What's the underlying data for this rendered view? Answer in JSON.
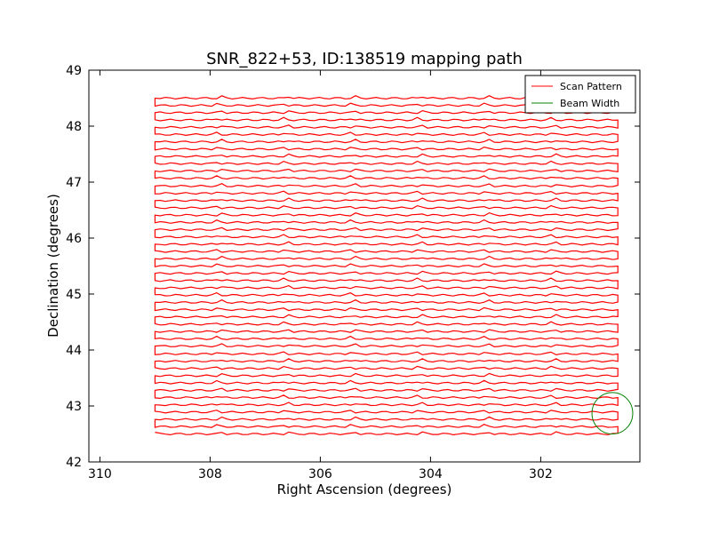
{
  "chart_data": {
    "type": "line",
    "title": "SNR_822+53, ID:138519 mapping path",
    "xlabel": "Right Ascension (degrees)",
    "ylabel": "Declination (degrees)",
    "xlim": [
      310.2,
      300.2
    ],
    "ylim": [
      42,
      49
    ],
    "x_inverted": true,
    "xticks": [
      310,
      308,
      306,
      304,
      302
    ],
    "yticks": [
      42,
      43,
      44,
      45,
      46,
      47,
      48,
      49
    ],
    "grid": false,
    "legend": {
      "placement": "upper right",
      "entries": [
        "Scan Pattern",
        "Beam Width"
      ]
    },
    "series": [
      {
        "name": "Scan Pattern",
        "color": "#ff0000",
        "kind": "boustrophedon raster",
        "ra_range": [
          309.0,
          300.6
        ],
        "dec_range": [
          42.5,
          48.5
        ],
        "n_scan_rows": 47,
        "x": [
          309.0,
          300.6,
          300.6,
          309.0,
          309.0,
          300.6,
          300.6,
          309.0,
          309.0,
          300.6,
          300.6,
          309.0,
          309.0,
          300.6,
          300.6,
          309.0,
          309.0,
          300.6,
          300.6,
          309.0,
          309.0,
          300.6,
          300.6,
          309.0,
          309.0,
          300.6,
          300.6,
          309.0,
          309.0,
          300.6,
          300.6,
          309.0,
          309.0,
          300.6,
          300.6,
          309.0,
          309.0,
          300.6,
          300.6,
          309.0,
          309.0,
          300.6,
          300.6,
          309.0,
          309.0,
          300.6,
          300.6,
          309.0,
          309.0,
          300.6,
          300.6,
          309.0,
          309.0,
          300.6,
          300.6,
          309.0,
          309.0,
          300.6,
          300.6,
          309.0,
          309.0,
          300.6,
          300.6,
          309.0,
          309.0,
          300.6,
          300.6,
          309.0,
          309.0,
          300.6,
          300.6,
          309.0,
          309.0,
          300.6,
          300.6,
          309.0,
          309.0,
          300.6,
          300.6,
          309.0,
          309.0,
          300.6,
          300.6,
          309.0,
          309.0,
          300.6,
          300.6,
          309.0,
          309.0,
          300.6,
          300.6,
          309.0,
          309.0,
          300.6
        ],
        "y": [
          42.5,
          42.5,
          42.63,
          42.63,
          42.76,
          42.76,
          42.89,
          42.89,
          43.02,
          43.02,
          43.15,
          43.15,
          43.28,
          43.28,
          43.41,
          43.41,
          43.54,
          43.54,
          43.67,
          43.67,
          43.8,
          43.8,
          43.93,
          43.93,
          44.07,
          44.07,
          44.2,
          44.2,
          44.33,
          44.33,
          44.46,
          44.46,
          44.59,
          44.59,
          44.72,
          44.72,
          44.85,
          44.85,
          44.98,
          44.98,
          45.11,
          45.11,
          45.24,
          45.24,
          45.37,
          45.37,
          45.5,
          45.5,
          45.63,
          45.63,
          45.76,
          45.76,
          45.89,
          45.89,
          46.02,
          46.02,
          46.15,
          46.15,
          46.28,
          46.28,
          46.41,
          46.41,
          46.54,
          46.54,
          46.67,
          46.67,
          46.8,
          46.8,
          46.93,
          46.93,
          47.07,
          47.07,
          47.2,
          47.2,
          47.33,
          47.33,
          47.46,
          47.46,
          47.59,
          47.59,
          47.72,
          47.72,
          47.85,
          47.85,
          47.98,
          47.98,
          48.11,
          48.11,
          48.24,
          48.24,
          48.37,
          48.37,
          48.5,
          48.5
        ]
      },
      {
        "name": "Beam Width",
        "color": "#008000",
        "kind": "circle",
        "center": [
          300.7,
          42.87
        ],
        "radius_deg": 0.37
      }
    ]
  }
}
